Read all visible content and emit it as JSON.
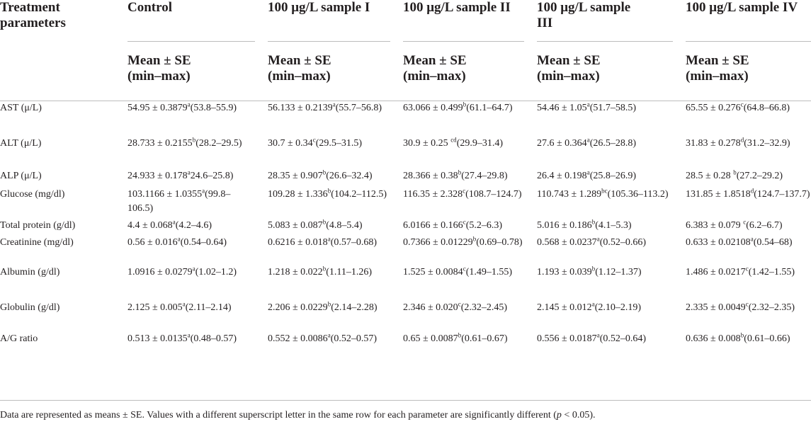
{
  "header": {
    "col0": "Treatment parameters",
    "col0_line1": "Treatment",
    "col0_line2": "parameters",
    "col1": "Control",
    "col2": "100 μg/L sample I",
    "col3": "100 μg/L sample II",
    "col4_line1": "100 μg/L sample",
    "col4_line2": "III",
    "col5": "100 μg/L sample IV",
    "sub_line1": "Mean ± SE",
    "sub_line2": "(min–max)"
  },
  "rows": [
    {
      "param": "AST (μ/L)",
      "cells": [
        {
          "mean": "54.95 ± 0.3879",
          "sup": "a",
          "range": "(53.8–55.9)"
        },
        {
          "mean": "56.133 ± 0.2139",
          "sup": "a",
          "range": "(55.7–56.8)"
        },
        {
          "mean": "63.066 ± 0.499",
          "sup": "b",
          "range": "(61.1–64.7)"
        },
        {
          "mean": "54.46 ± 1.05",
          "sup": "a",
          "range": "(51.7–58.5)"
        },
        {
          "mean": "65.55 ± 0.276",
          "sup": "c",
          "range": "(64.8–66.8)"
        }
      ]
    },
    {
      "param": "ALT (μ/L)",
      "cells": [
        {
          "mean": "28.733 ± 0.2155",
          "sup": "b",
          "range": "(28.2–29.5)"
        },
        {
          "mean": "30.7 ± 0.34",
          "sup": "c",
          "range": "(29.5–31.5)"
        },
        {
          "mean": "30.9 ± 0.25 ",
          "sup": "cd",
          "range": "(29.9–31.4)"
        },
        {
          "mean": "27.6 ± 0.364",
          "sup": "a",
          "range": "(26.5–28.8)"
        },
        {
          "mean": "31.83 ± 0.278",
          "sup": "d",
          "range": "(31.2–32.9)"
        }
      ]
    },
    {
      "param": "ALP (μ/L)",
      "cells": [
        {
          "mean": "24.933 ± 0.178",
          "sup": "a",
          "range": "24.6–25.8)"
        },
        {
          "mean": "28.35 ± 0.907",
          "sup": "b",
          "range": "(26.6–32.4)"
        },
        {
          "mean": "28.366 ± 0.38",
          "sup": "b",
          "range": "(27.4–29.8)"
        },
        {
          "mean": "26.4 ± 0.198",
          "sup": "a",
          "range": "(25.8–26.9)"
        },
        {
          "mean": "28.5 ± 0.28 ",
          "sup": "b",
          "range": "(27.2–29.2)"
        }
      ]
    },
    {
      "param": "Glucose (mg/dl)",
      "cells": [
        {
          "mean": "103.1166 ± 1.0355",
          "sup": "a",
          "range": "(99.8–106.5)"
        },
        {
          "mean": "109.28 ± 1.336",
          "sup": "b",
          "range": "(104.2–112.5)"
        },
        {
          "mean": "116.35 ± 2.328",
          "sup": "c",
          "range": "(108.7–124.7)"
        },
        {
          "mean": "110.743 ± 1.289",
          "sup": "bc",
          "range": "(105.36–113.2)"
        },
        {
          "mean": "131.85 ± 1.8518",
          "sup": "d",
          "range": "(124.7–137.7)"
        }
      ]
    },
    {
      "param": "Total protein (g/dl)",
      "cells": [
        {
          "mean": "4.4 ± 0.068",
          "sup": "a",
          "range": "(4.2–4.6)"
        },
        {
          "mean": "5.083 ± 0.087",
          "sup": "b",
          "range": "(4.8–5.4)"
        },
        {
          "mean": "6.0166 ± 0.166",
          "sup": "c",
          "range": "(5.2–6.3)"
        },
        {
          "mean": "5.016 ± 0.186",
          "sup": "b",
          "range": "(4.1–5.3)"
        },
        {
          "mean": "6.383 ± 0.079 ",
          "sup": "c",
          "range": "(6.2–6.7)"
        }
      ]
    },
    {
      "param": "Creatinine (mg/dl)",
      "cells": [
        {
          "mean": "0.56 ± 0.016",
          "sup": "a",
          "range": "(0.54–0.64)"
        },
        {
          "mean": "0.6216 ± 0.018",
          "sup": "a",
          "range": "(0.57–0.68)"
        },
        {
          "mean": "0.7366 ± 0.01229",
          "sup": "b",
          "range": "(0.69–0.78)"
        },
        {
          "mean": "0.568 ± 0.0237",
          "sup": "a",
          "range": "(0.52–0.66)"
        },
        {
          "mean": "0.633 ± 0.02108",
          "sup": "a",
          "range": "(0.54–68)"
        }
      ]
    },
    {
      "param": "Albumin (g/dl)",
      "cells": [
        {
          "mean": "1.0916 ± 0.0279",
          "sup": "a",
          "range": "(1.02–1.2)"
        },
        {
          "mean": "1.218 ± 0.022",
          "sup": "b",
          "range": "(1.11–1.26)"
        },
        {
          "mean": "1.525 ± 0.0084",
          "sup": "c",
          "range": "(1.49–1.55)"
        },
        {
          "mean": "1.193 ± 0.039",
          "sup": "b",
          "range": "(1.12–1.37)"
        },
        {
          "mean": "1.486 ± 0.0217",
          "sup": "c",
          "range": "(1.42–1.55)"
        }
      ]
    },
    {
      "param": "Globulin (g/dl)",
      "cells": [
        {
          "mean": "2.125 ± 0.005",
          "sup": "a",
          "range": "(2.11–2.14)"
        },
        {
          "mean": "2.206 ± 0.0229",
          "sup": "b",
          "range": "(2.14–2.28)"
        },
        {
          "mean": "2.346 ± 0.020",
          "sup": "c",
          "range": "(2.32–2.45)"
        },
        {
          "mean": "2.145 ± 0.012",
          "sup": "a",
          "range": "(2.10–2.19)"
        },
        {
          "mean": "2.335 ± 0.0049",
          "sup": "c",
          "range": "(2.32–2.35)"
        }
      ]
    },
    {
      "param": "A/G ratio",
      "cells": [
        {
          "mean": "0.513 ± 0.0135",
          "sup": "a",
          "range": "(0.48–0.57)"
        },
        {
          "mean": "0.552 ± 0.0086",
          "sup": "a",
          "range": "(0.52–0.57)"
        },
        {
          "mean": "0.65 ± 0.0087",
          "sup": "b",
          "range": "(0.61–0.67)"
        },
        {
          "mean": "0.556 ± 0.0187",
          "sup": "a",
          "range": "(0.52–0.64)"
        },
        {
          "mean": "0.636 ± 0.008",
          "sup": "b",
          "range": "(0.61–0.66)"
        }
      ]
    }
  ],
  "footnote": {
    "text_before": "Data are represented as means ± SE. Values with a different superscript letter in the same row for each parameter are significantly different (",
    "p": "p",
    "text_after": " < 0.05)."
  }
}
